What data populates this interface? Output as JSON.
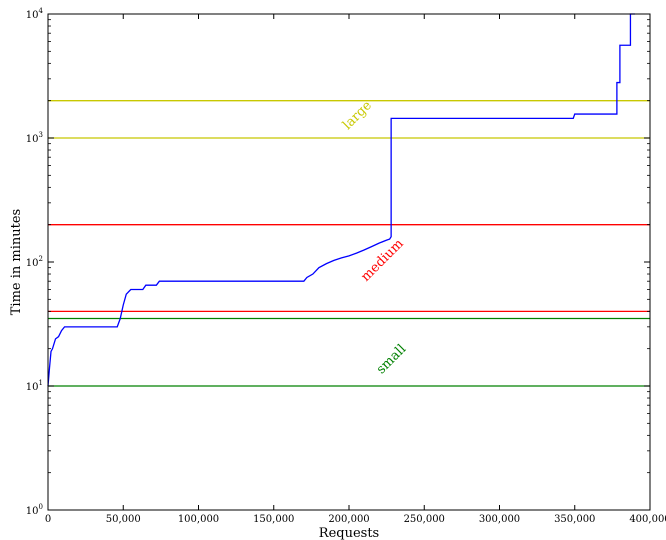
{
  "chart_data": {
    "type": "line",
    "title": "",
    "xlabel": "Requests",
    "ylabel": "Time in minutes",
    "xlim": [
      0,
      400000
    ],
    "ylim": [
      1,
      10000
    ],
    "yscale": "log",
    "grid": false,
    "x_ticks": [
      0,
      50000,
      100000,
      150000,
      200000,
      250000,
      300000,
      350000,
      400000
    ],
    "x_tick_labels": [
      "0",
      "50,000",
      "100,000",
      "150,000",
      "200,000",
      "250,000",
      "300,000",
      "350,000",
      "400,000"
    ],
    "y_ticks": [
      1,
      10,
      100,
      1000,
      10000
    ],
    "y_tick_labels": [
      {
        "base": "10",
        "exp": "0"
      },
      {
        "base": "10",
        "exp": "1"
      },
      {
        "base": "10",
        "exp": "2"
      },
      {
        "base": "10",
        "exp": "3"
      },
      {
        "base": "10",
        "exp": "4"
      }
    ],
    "series": [
      {
        "color": "#0000ff",
        "x": [
          0,
          1000,
          2000,
          3000,
          5000,
          7000,
          9000,
          11000,
          20000,
          30000,
          40000,
          46000,
          48000,
          50000,
          52000,
          55000,
          60000,
          63000,
          65000,
          70000,
          72000,
          74000,
          80000,
          100000,
          130000,
          150000,
          170000,
          172000,
          176000,
          180000,
          185000,
          190000,
          195000,
          200000,
          205000,
          210000,
          215000,
          220000,
          225000,
          227000,
          228000,
          228001,
          240000,
          300000,
          349000,
          350000,
          360000,
          378000,
          378001,
          380000,
          380001,
          385000,
          387000,
          387001,
          390000
        ],
        "y": [
          10,
          14,
          19,
          20,
          24,
          25,
          28,
          30,
          30,
          30,
          30,
          30,
          35,
          45,
          55,
          60,
          60,
          60,
          65,
          65,
          65,
          70,
          70,
          70,
          70,
          70,
          70,
          75,
          80,
          90,
          97,
          103,
          108,
          112,
          118,
          125,
          133,
          142,
          150,
          153,
          160,
          1440,
          1440,
          1440,
          1440,
          1560,
          1560,
          1560,
          2800,
          2800,
          5600,
          5600,
          5600,
          9999,
          9999
        ]
      }
    ],
    "bands": [
      {
        "name": "large",
        "color": "#c8c800",
        "lower": 1000,
        "upper": 2000
      },
      {
        "name": "medium",
        "color": "#ff0000",
        "lower": 40,
        "upper": 200
      },
      {
        "name": "small",
        "color": "#008000",
        "lower": 10,
        "upper": 35
      }
    ]
  }
}
